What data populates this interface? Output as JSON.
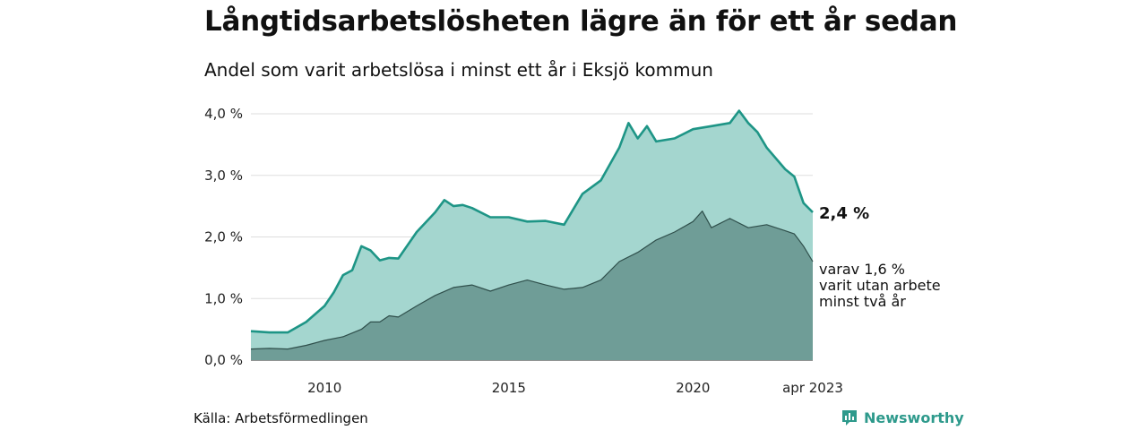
{
  "title": "Långtidsarbetslösheten lägre än för ett år sedan",
  "subtitle": "Andel som varit arbetslösa i minst ett år i Eksjö kommun",
  "source": "Källa: Arbetsförmedlingen",
  "brand": {
    "name": "Newsworthy",
    "icon": "bar-chart-icon"
  },
  "colors": {
    "main_fill": "#a4d6cf",
    "main_line": "#1e9586",
    "sub_fill": "#6f9d97",
    "sub_line": "#2f4f4b",
    "grid": "#dddddd"
  },
  "chart_data": {
    "type": "area",
    "ylim": [
      0,
      4.0
    ],
    "y_ticks": [
      0,
      1,
      2,
      3,
      4
    ],
    "y_tick_labels": [
      "0,0 %",
      "1,0 %",
      "2,0 %",
      "3,0 %",
      "4,0 %"
    ],
    "x_ticks": [
      2010,
      2015,
      2020
    ],
    "x_tick_labels": [
      "2010",
      "2015",
      "2020"
    ],
    "x_range": [
      "2008-01",
      "2023-04"
    ],
    "end_label_x": "apr 2023",
    "end_label_main": "2,4 %",
    "end_label_sub": [
      "varav 1,6 %",
      "varit utan arbete",
      "minst två år"
    ],
    "series": [
      {
        "name": "minst ett år",
        "x": [
          "2008-01",
          "2008-07",
          "2009-01",
          "2009-07",
          "2010-01",
          "2010-04",
          "2010-07",
          "2010-10",
          "2011-01",
          "2011-04",
          "2011-07",
          "2011-10",
          "2012-01",
          "2012-07",
          "2013-01",
          "2013-04",
          "2013-07",
          "2013-10",
          "2014-01",
          "2014-07",
          "2015-01",
          "2015-07",
          "2016-01",
          "2016-07",
          "2017-01",
          "2017-07",
          "2018-01",
          "2018-04",
          "2018-07",
          "2018-10",
          "2019-01",
          "2019-07",
          "2020-01",
          "2020-07",
          "2021-01",
          "2021-04",
          "2021-07",
          "2021-10",
          "2022-01",
          "2022-07",
          "2022-10",
          "2023-01",
          "2023-04"
        ],
        "values": [
          0.47,
          0.45,
          0.45,
          0.62,
          0.88,
          1.1,
          1.38,
          1.46,
          1.85,
          1.78,
          1.62,
          1.66,
          1.65,
          2.08,
          2.4,
          2.6,
          2.5,
          2.52,
          2.47,
          2.32,
          2.32,
          2.25,
          2.26,
          2.2,
          2.7,
          2.92,
          3.45,
          3.85,
          3.6,
          3.8,
          3.55,
          3.6,
          3.75,
          3.8,
          3.85,
          4.05,
          3.85,
          3.7,
          3.45,
          3.1,
          2.98,
          2.55,
          2.4
        ]
      },
      {
        "name": "minst två år",
        "x": [
          "2008-01",
          "2008-07",
          "2009-01",
          "2009-07",
          "2010-01",
          "2010-07",
          "2011-01",
          "2011-04",
          "2011-07",
          "2011-10",
          "2012-01",
          "2012-07",
          "2013-01",
          "2013-07",
          "2014-01",
          "2014-07",
          "2015-01",
          "2015-07",
          "2016-01",
          "2016-07",
          "2017-01",
          "2017-07",
          "2018-01",
          "2018-07",
          "2019-01",
          "2019-07",
          "2020-01",
          "2020-04",
          "2020-07",
          "2021-01",
          "2021-07",
          "2022-01",
          "2022-07",
          "2022-10",
          "2023-01",
          "2023-04"
        ],
        "values": [
          0.18,
          0.19,
          0.18,
          0.24,
          0.32,
          0.38,
          0.5,
          0.62,
          0.62,
          0.72,
          0.7,
          0.88,
          1.05,
          1.18,
          1.22,
          1.12,
          1.22,
          1.3,
          1.22,
          1.15,
          1.18,
          1.3,
          1.6,
          1.75,
          1.95,
          2.08,
          2.25,
          2.42,
          2.15,
          2.3,
          2.15,
          2.2,
          2.1,
          2.05,
          1.85,
          1.6
        ]
      }
    ]
  }
}
